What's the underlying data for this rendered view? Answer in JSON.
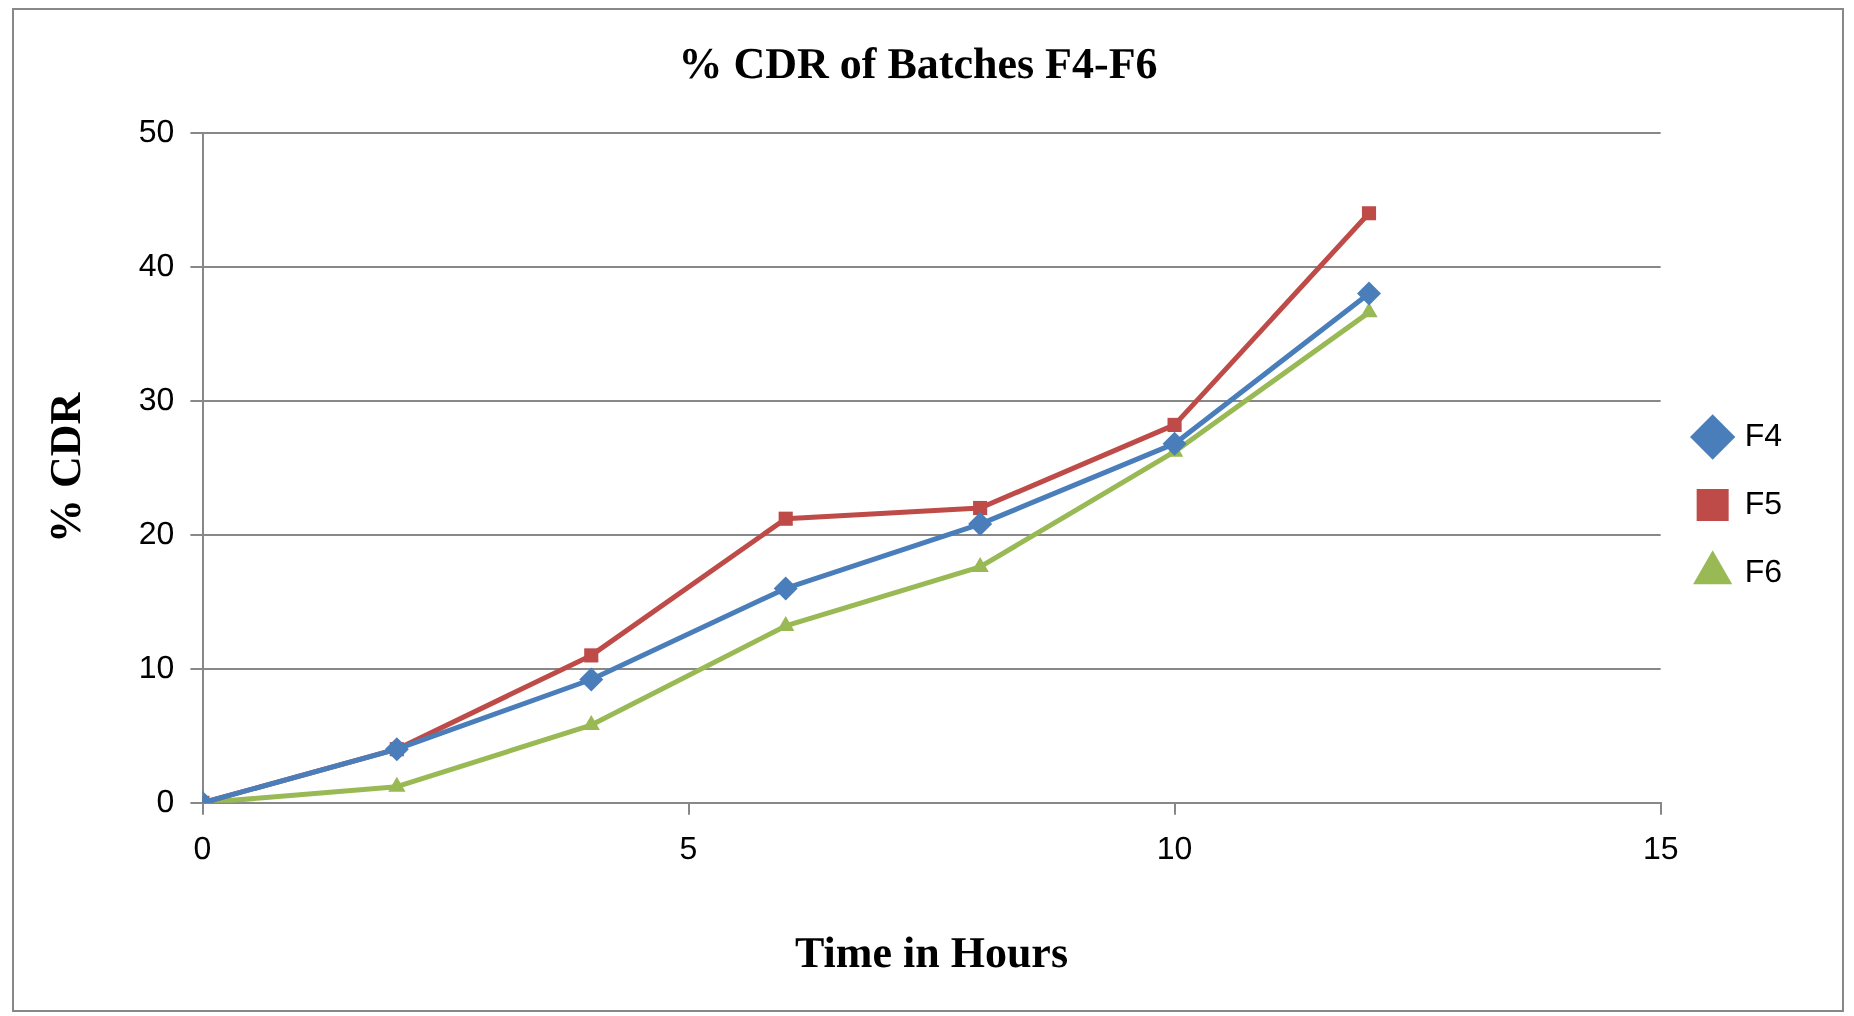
{
  "chart_data": {
    "type": "line",
    "title": "% CDR of Batches F4-F6",
    "xlabel": "Time in Hours",
    "ylabel": "% CDR",
    "x": [
      0,
      2,
      4,
      6,
      8,
      10,
      12
    ],
    "series": [
      {
        "name": "F4",
        "color": "#4a7ebb",
        "marker": "diamond",
        "values": [
          0,
          4,
          9.2,
          16,
          20.8,
          26.8,
          38
        ]
      },
      {
        "name": "F5",
        "color": "#be4b48",
        "marker": "square",
        "values": [
          0,
          4,
          11,
          21.2,
          22,
          28.2,
          44
        ]
      },
      {
        "name": "F6",
        "color": "#98b954",
        "marker": "triangle",
        "values": [
          0,
          1.2,
          5.8,
          13.2,
          17.6,
          26.2,
          36.6
        ]
      }
    ],
    "xlim": [
      0,
      15
    ],
    "xticks": [
      0,
      5,
      10,
      15
    ],
    "ylim": [
      0,
      50
    ],
    "yticks": [
      0,
      10,
      20,
      30,
      40,
      50
    ],
    "grid": "y",
    "legend": "right"
  }
}
